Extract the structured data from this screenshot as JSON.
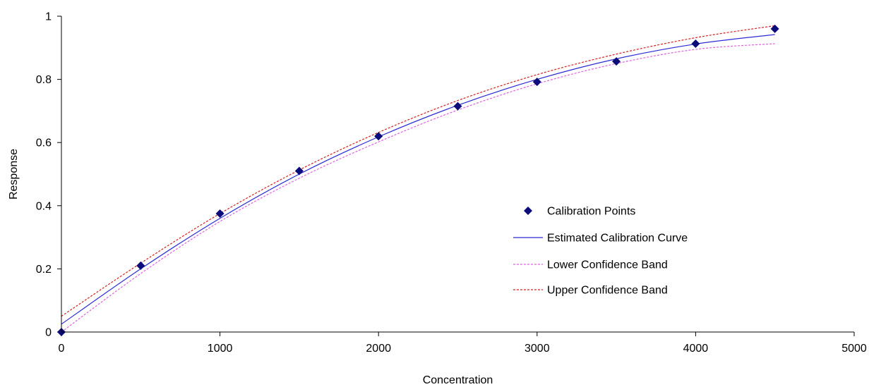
{
  "chart_data": {
    "type": "scatter",
    "title": "",
    "xlabel": "Concentration",
    "ylabel": "Response",
    "xlim": [
      0,
      5000
    ],
    "ylim": [
      0,
      1
    ],
    "x_ticks": [
      "0",
      "1000",
      "2000",
      "3000",
      "4000",
      "5000"
    ],
    "y_ticks": [
      "0",
      "0.2",
      "0.4",
      "0.6",
      "0.8",
      "1"
    ],
    "grid": false,
    "legend_position": "center-right",
    "series": [
      {
        "name": "Calibration Points",
        "kind": "scatter",
        "marker": "diamond",
        "color": "#0b0b7a",
        "x": [
          0,
          500,
          1000,
          1500,
          2000,
          2500,
          3000,
          3500,
          4000,
          4500
        ],
        "y": [
          0.0,
          0.21,
          0.375,
          0.51,
          0.62,
          0.715,
          0.792,
          0.857,
          0.913,
          0.96
        ]
      },
      {
        "name": "Estimated Calibration Curve",
        "kind": "line",
        "style": "solid",
        "color": "#2a2ad6",
        "x": [
          0,
          500,
          1000,
          1500,
          2000,
          2500,
          3000,
          3500,
          4000,
          4500
        ],
        "y": [
          0.025,
          0.2,
          0.36,
          0.5,
          0.618,
          0.718,
          0.8,
          0.865,
          0.912,
          0.942
        ]
      },
      {
        "name": "Lower Confidence Band",
        "kind": "line",
        "style": "dashed",
        "color": "#e060e0",
        "x": [
          0,
          500,
          1000,
          1500,
          2000,
          2500,
          3000,
          3500,
          4000,
          4500
        ],
        "y": [
          0.0,
          0.185,
          0.35,
          0.487,
          0.602,
          0.703,
          0.786,
          0.85,
          0.895,
          0.913
        ]
      },
      {
        "name": "Upper Confidence Band",
        "kind": "line",
        "style": "dashed",
        "color": "#d42020",
        "x": [
          0,
          500,
          1000,
          1500,
          2000,
          2500,
          3000,
          3500,
          4000,
          4500
        ],
        "y": [
          0.05,
          0.218,
          0.375,
          0.513,
          0.632,
          0.733,
          0.815,
          0.88,
          0.932,
          0.97
        ]
      }
    ]
  }
}
